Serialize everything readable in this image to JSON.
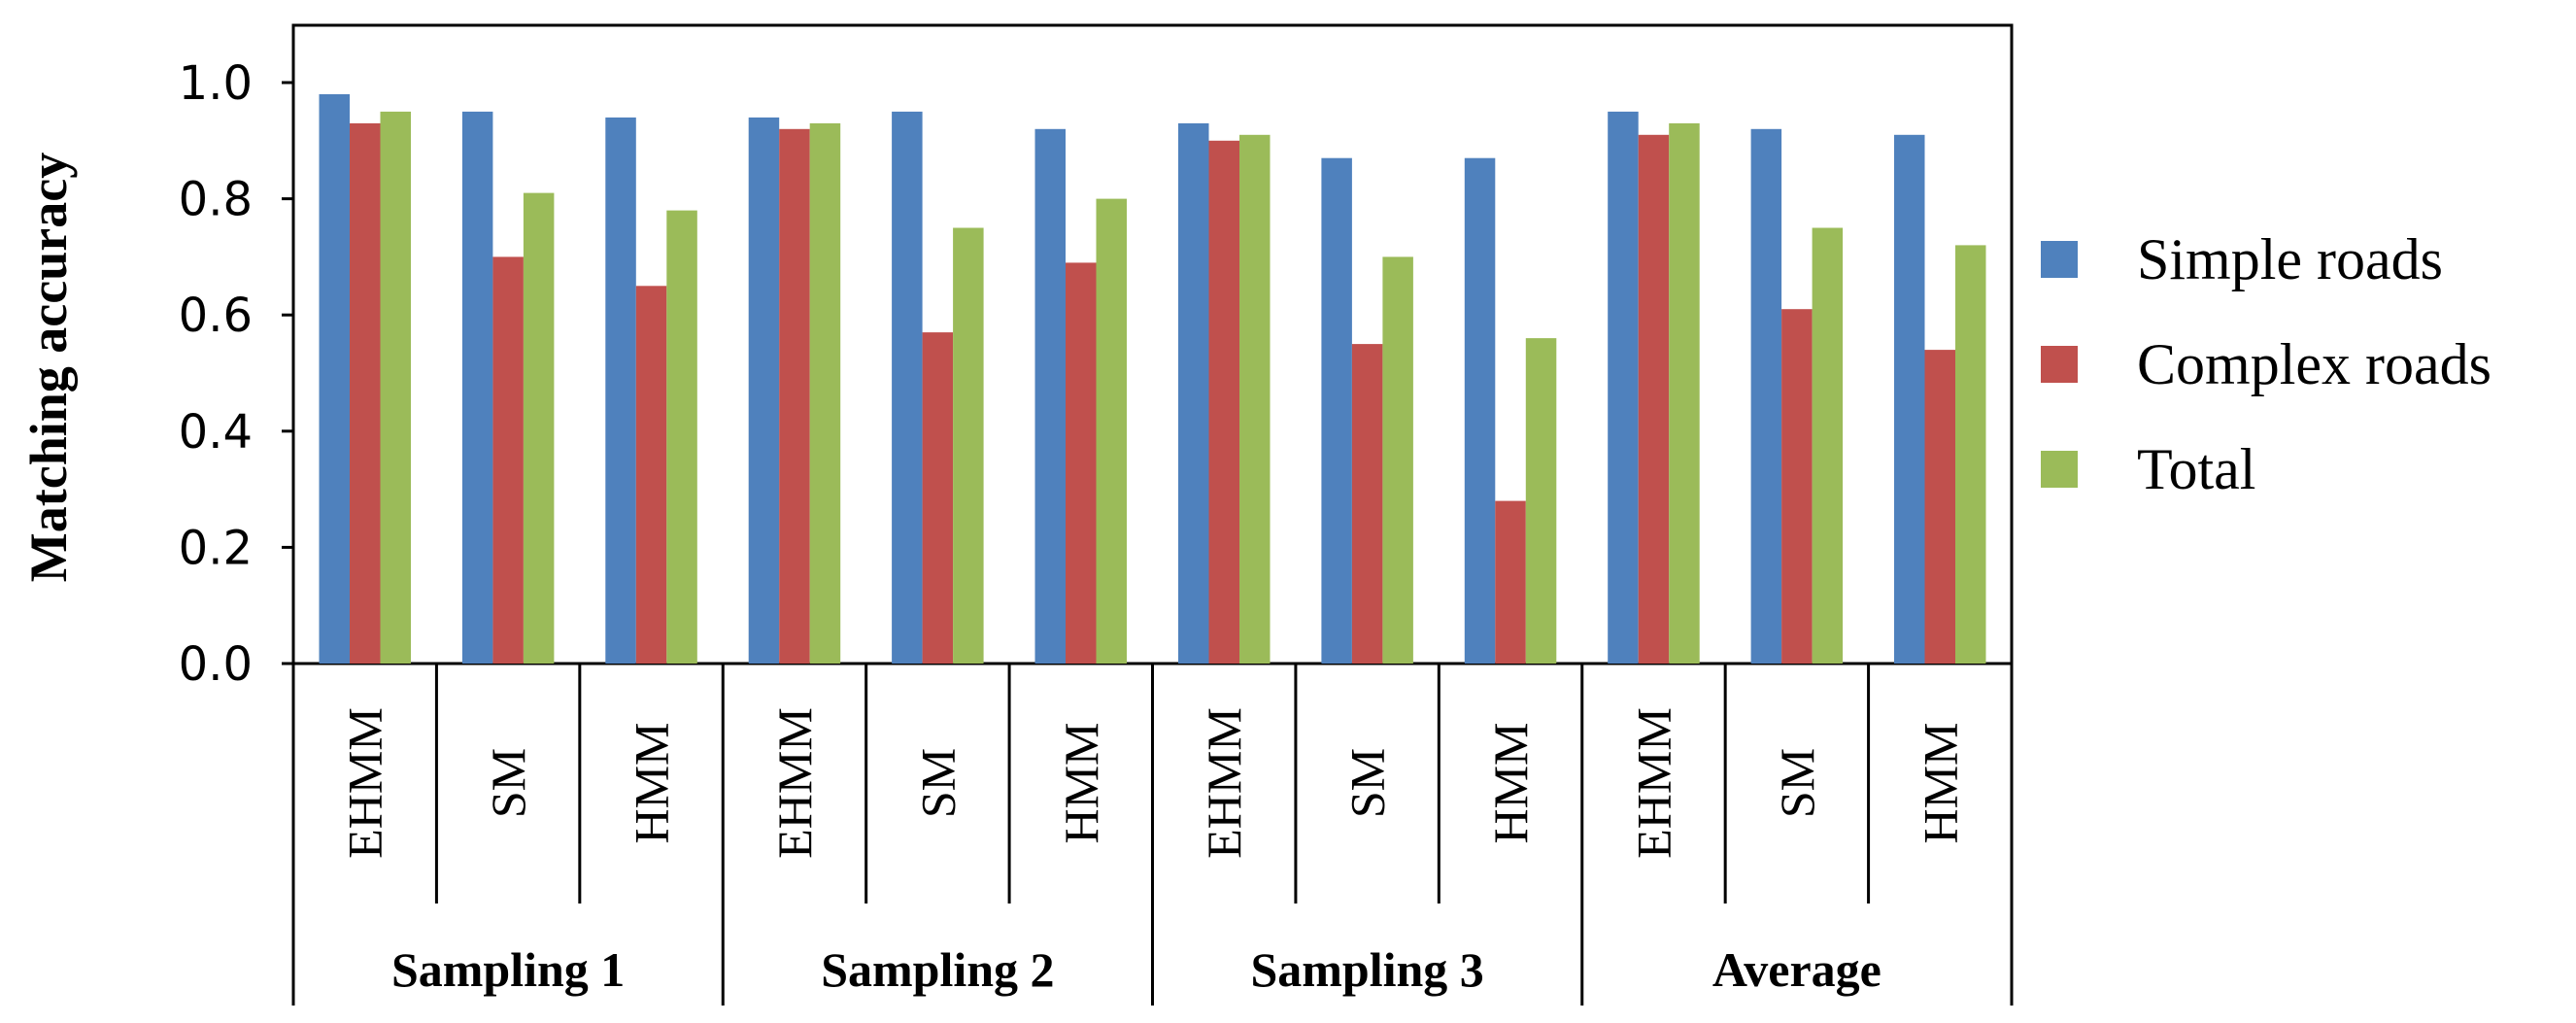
{
  "chart_data": {
    "type": "bar",
    "title": "",
    "xlabel": "",
    "ylabel": "Matching accuracy",
    "ylim": [
      0,
      1.1
    ],
    "yticks": [
      0.0,
      0.2,
      0.4,
      0.6,
      0.8,
      1.0
    ],
    "ytick_labels": [
      "0.0",
      "0.2",
      "0.4",
      "0.6",
      "0.8",
      "1.0"
    ],
    "groups": [
      "Sampling 1",
      "Sampling 2",
      "Sampling 3",
      "Average"
    ],
    "categories": [
      "EHMM",
      "SM",
      "HMM",
      "EHMM",
      "SM",
      "HMM",
      "EHMM",
      "SM",
      "HMM",
      "EHMM",
      "SM",
      "HMM"
    ],
    "series": [
      {
        "name": "Simple roads",
        "color": "#4F81BD",
        "values": [
          0.98,
          0.95,
          0.94,
          0.94,
          0.95,
          0.92,
          0.93,
          0.87,
          0.87,
          0.95,
          0.92,
          0.91
        ]
      },
      {
        "name": "Complex roads",
        "color": "#C0504D",
        "values": [
          0.93,
          0.7,
          0.65,
          0.92,
          0.57,
          0.69,
          0.9,
          0.55,
          0.28,
          0.91,
          0.61,
          0.54
        ]
      },
      {
        "name": "Total",
        "color": "#9BBB59",
        "values": [
          0.95,
          0.81,
          0.78,
          0.93,
          0.75,
          0.8,
          0.91,
          0.7,
          0.56,
          0.93,
          0.75,
          0.72
        ]
      }
    ],
    "legend_position": "right",
    "grid": false
  }
}
